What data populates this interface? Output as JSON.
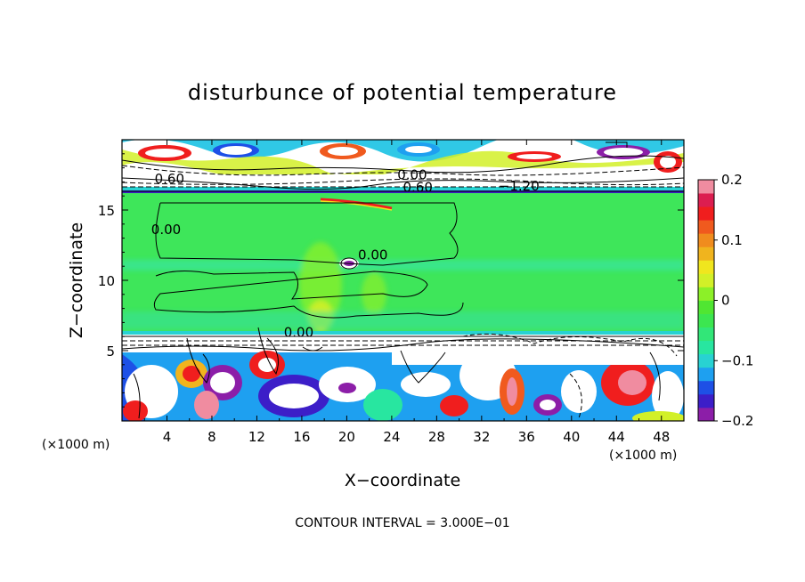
{
  "chart_data": {
    "type": "heatmap",
    "title": "disturbunce of potential temperature",
    "xlabel": "X−coordinate",
    "ylabel": "Z−coordinate",
    "x_unit": "(×1000 m)",
    "z_unit": "(×1000 m)",
    "xlim": [
      0,
      50
    ],
    "ylim": [
      0,
      20
    ],
    "x_ticks": [
      4,
      8,
      12,
      16,
      20,
      24,
      28,
      32,
      36,
      40,
      44,
      48
    ],
    "y_ticks": [
      5,
      10,
      15
    ],
    "footer": "CONTOUR INTERVAL = 3.000E−01",
    "colorbar": {
      "min": -0.2,
      "max": 0.2,
      "ticks": [
        "0.2",
        "0.1",
        "0",
        "−0.1",
        "−0.2"
      ],
      "colors": [
        "#8c1ea8",
        "#3c1ec8",
        "#1e50e6",
        "#1ea0f0",
        "#28d2d2",
        "#28e6a0",
        "#32e678",
        "#3ce650",
        "#50e632",
        "#8cf028",
        "#d2f028",
        "#f0e61e",
        "#f0b41e",
        "#f08c1e",
        "#f05a1e",
        "#f01e1e",
        "#dc1e50",
        "#f08ca0"
      ]
    },
    "contour_labels": [
      {
        "text": "0.60",
        "x": 2.9,
        "z": 17.2
      },
      {
        "text": "0.00",
        "x": 24.5,
        "z": 17.5
      },
      {
        "text": "0.60",
        "x": 25.0,
        "z": 16.6
      },
      {
        "text": "−1.20",
        "x": 33.5,
        "z": 16.7
      },
      {
        "text": "0.00",
        "x": 2.6,
        "z": 13.6
      },
      {
        "text": "0.00",
        "x": 21.0,
        "z": 11.8
      },
      {
        "text": "0.00",
        "x": 14.4,
        "z": 6.3
      }
    ]
  }
}
